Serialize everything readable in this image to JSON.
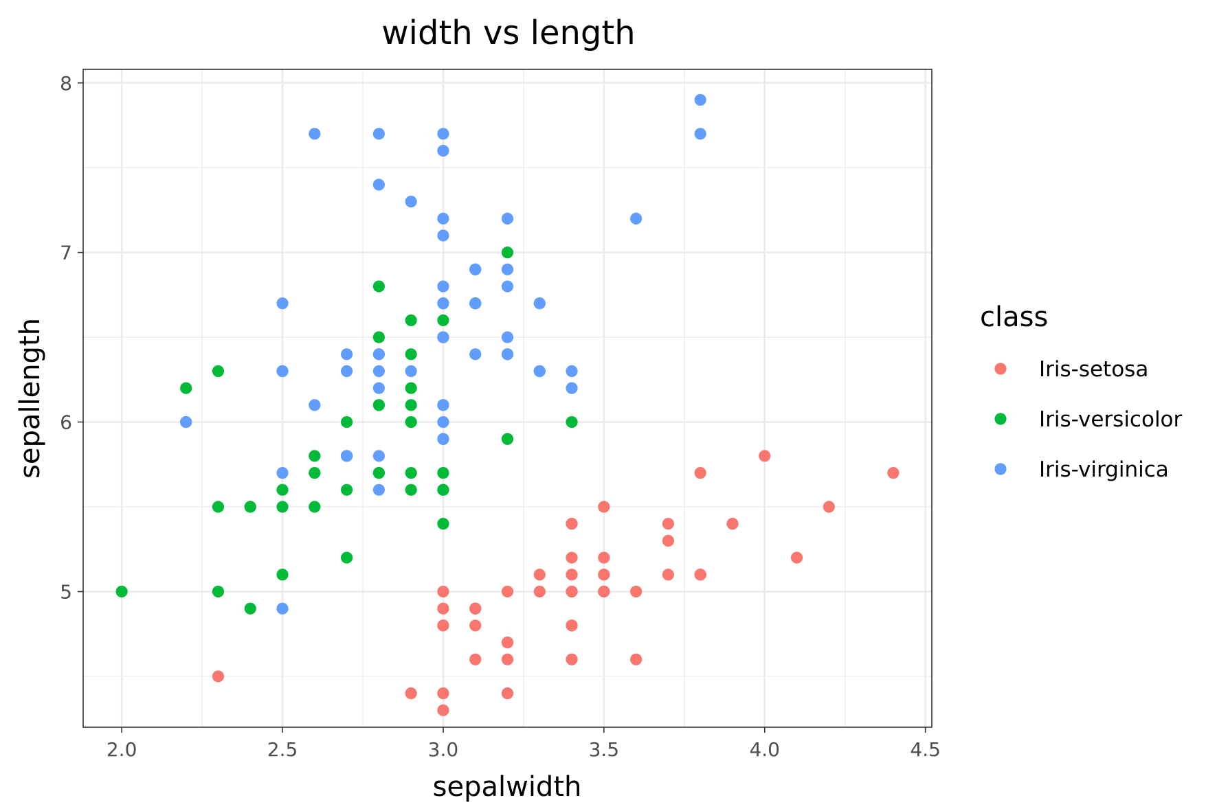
{
  "chart_data": {
    "type": "scatter",
    "title": "width vs length",
    "xlabel": "sepalwidth",
    "ylabel": "sepallength",
    "xlim": [
      1.88,
      4.52
    ],
    "ylim": [
      4.2,
      8.08
    ],
    "xticks": [
      "2.0",
      "2.5",
      "3.0",
      "3.5",
      "4.0",
      "4.5"
    ],
    "yticks": [
      "5",
      "6",
      "7",
      "8"
    ],
    "grid": true,
    "legend": {
      "title": "class",
      "position": "right"
    },
    "series": [
      {
        "name": "Iris-setosa",
        "color": "#F8766D",
        "points": [
          [
            3.5,
            5.1
          ],
          [
            3.0,
            4.9
          ],
          [
            3.2,
            4.7
          ],
          [
            3.1,
            4.6
          ],
          [
            3.6,
            5.0
          ],
          [
            3.9,
            5.4
          ],
          [
            3.4,
            4.6
          ],
          [
            3.4,
            5.0
          ],
          [
            2.9,
            4.4
          ],
          [
            3.1,
            4.9
          ],
          [
            3.7,
            5.4
          ],
          [
            3.4,
            4.8
          ],
          [
            3.0,
            4.8
          ],
          [
            3.0,
            4.3
          ],
          [
            4.0,
            5.8
          ],
          [
            4.4,
            5.7
          ],
          [
            3.9,
            5.4
          ],
          [
            3.5,
            5.1
          ],
          [
            3.8,
            5.7
          ],
          [
            3.8,
            5.1
          ],
          [
            3.4,
            5.4
          ],
          [
            3.7,
            5.1
          ],
          [
            3.6,
            4.6
          ],
          [
            3.3,
            5.1
          ],
          [
            3.4,
            4.8
          ],
          [
            3.0,
            5.0
          ],
          [
            3.4,
            5.0
          ],
          [
            3.5,
            5.2
          ],
          [
            3.4,
            5.2
          ],
          [
            3.2,
            4.7
          ],
          [
            3.1,
            4.8
          ],
          [
            3.4,
            5.4
          ],
          [
            4.1,
            5.2
          ],
          [
            4.2,
            5.5
          ],
          [
            3.1,
            4.9
          ],
          [
            3.2,
            5.0
          ],
          [
            3.5,
            5.5
          ],
          [
            3.1,
            4.9
          ],
          [
            3.0,
            4.4
          ],
          [
            3.4,
            5.1
          ],
          [
            3.5,
            5.0
          ],
          [
            2.3,
            4.5
          ],
          [
            3.2,
            4.4
          ],
          [
            3.5,
            5.0
          ],
          [
            3.8,
            5.1
          ],
          [
            3.0,
            4.8
          ],
          [
            3.8,
            5.1
          ],
          [
            3.2,
            4.6
          ],
          [
            3.7,
            5.3
          ],
          [
            3.3,
            5.0
          ]
        ]
      },
      {
        "name": "Iris-versicolor",
        "color": "#00BA38",
        "points": [
          [
            3.2,
            7.0
          ],
          [
            3.2,
            6.4
          ],
          [
            3.1,
            6.9
          ],
          [
            2.3,
            5.5
          ],
          [
            2.8,
            6.5
          ],
          [
            2.8,
            5.7
          ],
          [
            3.3,
            6.3
          ],
          [
            2.4,
            4.9
          ],
          [
            2.9,
            6.6
          ],
          [
            2.7,
            5.2
          ],
          [
            2.0,
            5.0
          ],
          [
            3.0,
            5.9
          ],
          [
            2.2,
            6.0
          ],
          [
            2.9,
            6.1
          ],
          [
            2.9,
            5.6
          ],
          [
            3.1,
            6.7
          ],
          [
            3.0,
            5.6
          ],
          [
            2.7,
            5.8
          ],
          [
            2.2,
            6.2
          ],
          [
            2.5,
            5.6
          ],
          [
            3.2,
            5.9
          ],
          [
            2.8,
            6.1
          ],
          [
            2.5,
            6.3
          ],
          [
            2.8,
            6.1
          ],
          [
            2.9,
            6.4
          ],
          [
            3.0,
            6.6
          ],
          [
            2.8,
            6.8
          ],
          [
            3.0,
            6.7
          ],
          [
            2.9,
            6.0
          ],
          [
            2.6,
            5.7
          ],
          [
            2.4,
            5.5
          ],
          [
            2.4,
            5.5
          ],
          [
            2.7,
            5.8
          ],
          [
            2.7,
            6.0
          ],
          [
            3.0,
            5.4
          ],
          [
            3.4,
            6.0
          ],
          [
            3.1,
            6.7
          ],
          [
            2.3,
            6.3
          ],
          [
            3.0,
            5.6
          ],
          [
            2.5,
            5.5
          ],
          [
            2.6,
            5.5
          ],
          [
            3.0,
            6.1
          ],
          [
            2.6,
            5.8
          ],
          [
            2.3,
            5.0
          ],
          [
            2.7,
            5.6
          ],
          [
            3.0,
            5.7
          ],
          [
            2.9,
            5.7
          ],
          [
            2.9,
            6.2
          ],
          [
            2.5,
            5.1
          ],
          [
            2.8,
            5.7
          ]
        ]
      },
      {
        "name": "Iris-virginica",
        "color": "#619CFF",
        "points": [
          [
            3.3,
            6.3
          ],
          [
            2.7,
            5.8
          ],
          [
            3.0,
            7.1
          ],
          [
            2.9,
            6.3
          ],
          [
            3.0,
            6.5
          ],
          [
            3.0,
            7.6
          ],
          [
            2.5,
            4.9
          ],
          [
            2.9,
            7.3
          ],
          [
            2.5,
            6.7
          ],
          [
            3.6,
            7.2
          ],
          [
            3.2,
            6.5
          ],
          [
            2.7,
            6.4
          ],
          [
            3.0,
            6.8
          ],
          [
            2.5,
            5.7
          ],
          [
            2.8,
            5.8
          ],
          [
            3.2,
            6.4
          ],
          [
            3.0,
            6.5
          ],
          [
            3.8,
            7.7
          ],
          [
            2.6,
            7.7
          ],
          [
            2.2,
            6.0
          ],
          [
            3.2,
            6.9
          ],
          [
            2.8,
            5.6
          ],
          [
            2.8,
            7.7
          ],
          [
            2.7,
            6.3
          ],
          [
            3.3,
            6.7
          ],
          [
            3.2,
            7.2
          ],
          [
            2.8,
            6.2
          ],
          [
            3.0,
            6.1
          ],
          [
            2.8,
            6.4
          ],
          [
            3.0,
            7.2
          ],
          [
            2.8,
            7.4
          ],
          [
            3.8,
            7.9
          ],
          [
            2.8,
            6.4
          ],
          [
            2.8,
            6.3
          ],
          [
            2.6,
            6.1
          ],
          [
            3.0,
            7.7
          ],
          [
            3.4,
            6.3
          ],
          [
            3.1,
            6.4
          ],
          [
            3.0,
            6.0
          ],
          [
            3.1,
            6.9
          ],
          [
            3.1,
            6.7
          ],
          [
            3.1,
            6.9
          ],
          [
            2.7,
            5.8
          ],
          [
            3.2,
            6.8
          ],
          [
            3.3,
            6.7
          ],
          [
            3.0,
            6.7
          ],
          [
            2.5,
            6.3
          ],
          [
            3.0,
            6.5
          ],
          [
            3.4,
            6.2
          ],
          [
            3.0,
            5.9
          ]
        ]
      }
    ]
  }
}
